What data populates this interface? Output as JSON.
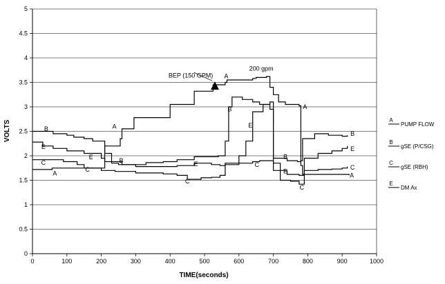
{
  "chart_data": {
    "type": "line",
    "title": "",
    "xlabel": "TIME(seconds)",
    "ylabel": "VOLTS",
    "xlim": [
      0,
      1000
    ],
    "ylim": [
      0,
      5
    ],
    "x_ticks": [
      "0",
      "100",
      "200",
      "300",
      "400",
      "500",
      "600",
      "700",
      "800",
      "900",
      "1000"
    ],
    "y_ticks": [
      "0",
      "0.5",
      "1",
      "1.5",
      "2",
      "2.5",
      "3",
      "3.5",
      "4",
      "4.5",
      "5"
    ],
    "grid": "horizontal",
    "legend_position": "right",
    "legend": [
      {
        "letter": "A",
        "label": "PUMP FLOW"
      },
      {
        "letter": "B",
        "label": "gSE (P/CSG)"
      },
      {
        "letter": "C",
        "label": "gSE (RBH)"
      },
      {
        "letter": "E",
        "label": "DM Ax"
      }
    ],
    "annotations": [
      {
        "text": "BEP (150 GPM)",
        "x": 530,
        "y": 3.42
      },
      {
        "text": "200 gpm",
        "x": 665,
        "y": 3.6
      }
    ],
    "series": [
      {
        "name": "PUMP FLOW",
        "letter": "A",
        "x": [
          0,
          55,
          57,
          205,
          210,
          255,
          260,
          290,
          295,
          395,
          400,
          465,
          470,
          520,
          525,
          560,
          565,
          640,
          650,
          680,
          690,
          700,
          715,
          735,
          775,
          780,
          785,
          920
        ],
        "y": [
          1.72,
          1.72,
          1.75,
          1.75,
          2.2,
          2.35,
          2.55,
          2.55,
          2.78,
          2.78,
          3.05,
          3.05,
          3.32,
          3.32,
          3.45,
          3.5,
          3.55,
          3.58,
          3.6,
          3.62,
          3.4,
          3.25,
          3.1,
          3.05,
          3.02,
          1.8,
          1.62,
          1.6
        ]
      },
      {
        "name": "gSE (P/CSG)",
        "letter": "B",
        "x": [
          0,
          30,
          60,
          100,
          120,
          150,
          175,
          200,
          210,
          230,
          250,
          290,
          330,
          380,
          420,
          470,
          540,
          560,
          570,
          580,
          610,
          640,
          660,
          690,
          700,
          740,
          770,
          780,
          785,
          820,
          860,
          900,
          915
        ],
        "y": [
          2.5,
          2.5,
          2.45,
          2.42,
          2.38,
          2.35,
          2.3,
          2.3,
          2.05,
          1.85,
          1.82,
          1.82,
          1.86,
          1.88,
          1.92,
          1.98,
          2.0,
          2.3,
          3.0,
          3.2,
          3.15,
          3.1,
          3.05,
          3.1,
          1.95,
          1.9,
          1.88,
          1.9,
          2.35,
          2.45,
          2.42,
          2.4,
          2.42
        ]
      },
      {
        "name": "gSE (RBH)",
        "letter": "C",
        "x": [
          0,
          40,
          90,
          130,
          150,
          200,
          240,
          300,
          380,
          420,
          450,
          490,
          520,
          545,
          560,
          600,
          640,
          660,
          700,
          720,
          750,
          775,
          790,
          830,
          870,
          900,
          915
        ],
        "y": [
          1.92,
          1.92,
          1.88,
          1.82,
          1.75,
          1.7,
          1.68,
          1.65,
          1.63,
          1.6,
          1.52,
          1.55,
          1.56,
          1.6,
          1.82,
          1.85,
          1.88,
          1.9,
          1.85,
          1.5,
          1.48,
          1.42,
          1.7,
          1.72,
          1.73,
          1.75,
          1.78
        ]
      },
      {
        "name": "DM Ax",
        "letter": "E",
        "x": [
          0,
          30,
          60,
          100,
          150,
          200,
          210,
          260,
          300,
          360,
          420,
          470,
          520,
          545,
          560,
          600,
          620,
          640,
          670,
          690,
          700,
          740,
          775,
          790,
          830,
          870,
          900,
          915
        ],
        "y": [
          2.28,
          2.2,
          2.15,
          2.1,
          2.05,
          1.95,
          1.88,
          1.82,
          1.78,
          1.78,
          1.8,
          1.85,
          1.82,
          1.8,
          1.85,
          2.0,
          2.3,
          2.9,
          3.05,
          2.95,
          1.7,
          1.62,
          1.6,
          1.95,
          2.05,
          2.1,
          2.15,
          2.2
        ]
      }
    ],
    "series_labels": [
      {
        "letter": "A",
        "x": 65,
        "y": 1.64
      },
      {
        "letter": "A",
        "x": 238,
        "y": 2.6
      },
      {
        "letter": "A",
        "x": 563,
        "y": 3.63
      },
      {
        "letter": "A",
        "x": 792,
        "y": 3.0
      },
      {
        "letter": "A",
        "x": 928,
        "y": 1.6
      },
      {
        "letter": "B",
        "x": 40,
        "y": 2.55
      },
      {
        "letter": "B",
        "x": 258,
        "y": 1.9
      },
      {
        "letter": "B",
        "x": 573,
        "y": 2.95
      },
      {
        "letter": "B",
        "x": 735,
        "y": 1.98
      },
      {
        "letter": "B",
        "x": 930,
        "y": 2.45
      },
      {
        "letter": "C",
        "x": 32,
        "y": 1.86
      },
      {
        "letter": "C",
        "x": 160,
        "y": 1.72
      },
      {
        "letter": "C",
        "x": 450,
        "y": 1.48
      },
      {
        "letter": "C",
        "x": 652,
        "y": 1.82
      },
      {
        "letter": "C",
        "x": 783,
        "y": 1.35
      },
      {
        "letter": "C",
        "x": 930,
        "y": 1.76
      },
      {
        "letter": "E",
        "x": 32,
        "y": 2.18
      },
      {
        "letter": "E",
        "x": 170,
        "y": 1.97
      },
      {
        "letter": "E",
        "x": 475,
        "y": 1.83
      },
      {
        "letter": "E",
        "x": 633,
        "y": 2.62
      },
      {
        "letter": "E",
        "x": 735,
        "y": 1.68
      },
      {
        "letter": "E",
        "x": 930,
        "y": 2.14
      }
    ]
  }
}
